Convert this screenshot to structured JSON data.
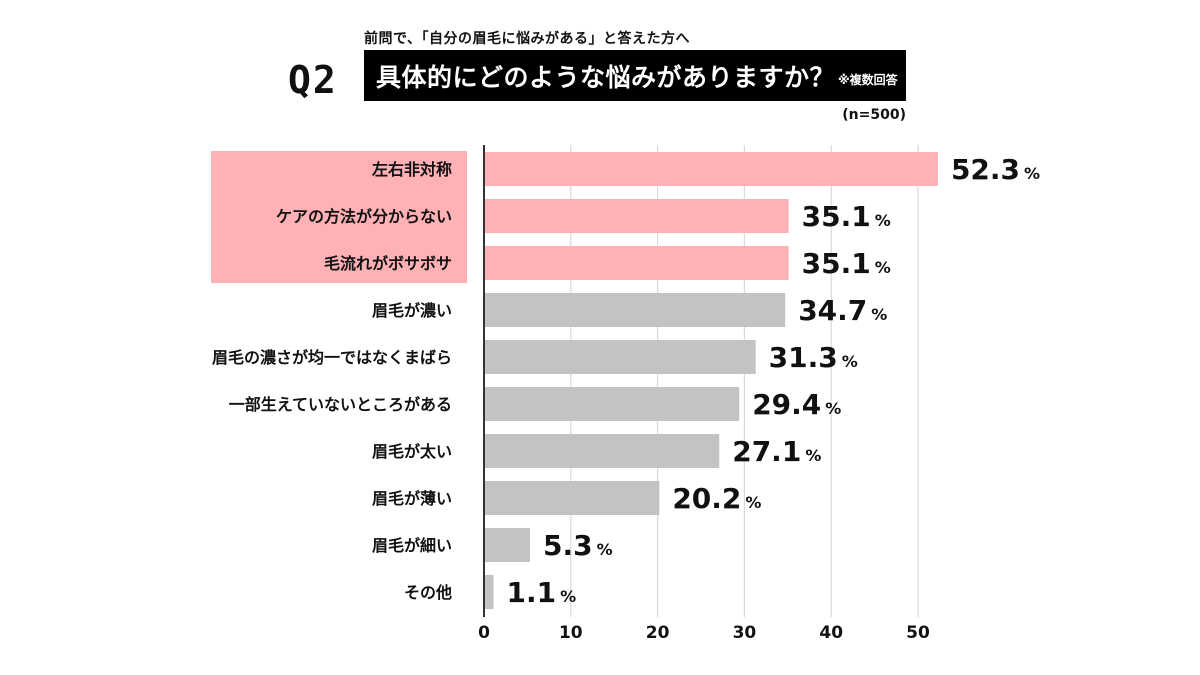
{
  "header": {
    "subtitle": "前問で、「自分の眉毛に悩みがある」と答えた方へ",
    "question_number": "Q2",
    "title": "具体的にどのような悩みがありますか？",
    "title_note": "※複数回答",
    "sample_size": "(n=500)"
  },
  "colors": {
    "highlight": "#ffb1b5",
    "bar_default": "#c3c3c3",
    "title_bg": "#000000"
  },
  "chart_data": {
    "type": "bar",
    "orientation": "horizontal",
    "title": "具体的にどのような悩みがありますか？",
    "xlabel": "",
    "ylabel": "",
    "xlim": [
      0,
      55
    ],
    "grid": true,
    "ticks": [
      0,
      10,
      20,
      30,
      40,
      50
    ],
    "value_suffix": "%",
    "categories": [
      "左右非対称",
      "ケアの方法が分からない",
      "毛流れがボサボサ",
      "眉毛が濃い",
      "眉毛の濃さが均一ではなくまばら",
      "一部生えていないところがある",
      "眉毛が太い",
      "眉毛が薄い",
      "眉毛が細い",
      "その他"
    ],
    "values": [
      52.3,
      35.1,
      35.1,
      34.7,
      31.3,
      29.4,
      27.1,
      20.2,
      5.3,
      1.1
    ],
    "value_labels": [
      "52.3",
      "35.1",
      "35.1",
      "34.7",
      "31.3",
      "29.4",
      "27.1",
      "20.2",
      "5.3",
      "1.1"
    ],
    "highlighted": [
      true,
      true,
      true,
      false,
      false,
      false,
      false,
      false,
      false,
      false
    ]
  }
}
